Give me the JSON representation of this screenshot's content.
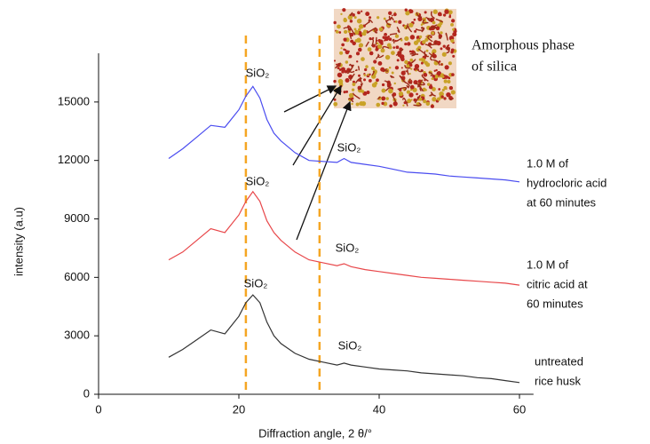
{
  "chart_data": {
    "type": "line",
    "xlabel": "Diffraction angle, 2 θ/°",
    "ylabel": "intensity (a.u)",
    "x": [
      10,
      12,
      14,
      16,
      18,
      20,
      21,
      22,
      23,
      24,
      25,
      26,
      28,
      30,
      32,
      34,
      35,
      36,
      38,
      40,
      42,
      44,
      46,
      48,
      50,
      52,
      54,
      56,
      58,
      60
    ],
    "series": [
      {
        "label_lines": [
          "untreated",
          "rice husk"
        ],
        "color": "#333333",
        "values": [
          1900,
          2300,
          2800,
          3300,
          3100,
          4000,
          4700,
          5100,
          4700,
          3700,
          3000,
          2600,
          2100,
          1800,
          1650,
          1500,
          1600,
          1500,
          1400,
          1300,
          1250,
          1200,
          1100,
          1050,
          1000,
          950,
          850,
          800,
          700,
          600
        ]
      },
      {
        "label_lines": [
          "1.0 M of",
          "citric acid at",
          "60 minutes"
        ],
        "color": "#e8474a",
        "values": [
          6900,
          7300,
          7900,
          8500,
          8300,
          9200,
          9900,
          10400,
          9900,
          8900,
          8300,
          7900,
          7300,
          6900,
          6750,
          6600,
          6700,
          6550,
          6400,
          6300,
          6200,
          6100,
          6000,
          5950,
          5900,
          5850,
          5800,
          5750,
          5700,
          5600
        ]
      },
      {
        "label_lines": [
          "1.0 M of",
          "hydrocloric acid",
          "at 60 minutes"
        ],
        "color": "#4a4cf0",
        "values": [
          12100,
          12600,
          13200,
          13800,
          13700,
          14600,
          15300,
          15800,
          15200,
          14100,
          13400,
          13000,
          12400,
          12000,
          11950,
          11900,
          12100,
          11900,
          11800,
          11700,
          11550,
          11400,
          11350,
          11300,
          11200,
          11150,
          11100,
          11050,
          11000,
          10900
        ]
      }
    ],
    "xlim": [
      0,
      62
    ],
    "xticks": [
      0,
      20,
      40,
      60
    ],
    "ylim": [
      0,
      17500
    ],
    "yticks": [
      0,
      3000,
      6000,
      9000,
      12000,
      15000
    ],
    "reference_lines": {
      "x": [
        21,
        31.5
      ],
      "color": "#f5a623"
    },
    "annotations": [
      "SiO₂",
      "SiO₂",
      "SiO₂",
      "SiO₂",
      "SiO₂",
      "SiO₂"
    ],
    "inset_label_lines": [
      "Amorphous phase",
      "of silica"
    ]
  }
}
